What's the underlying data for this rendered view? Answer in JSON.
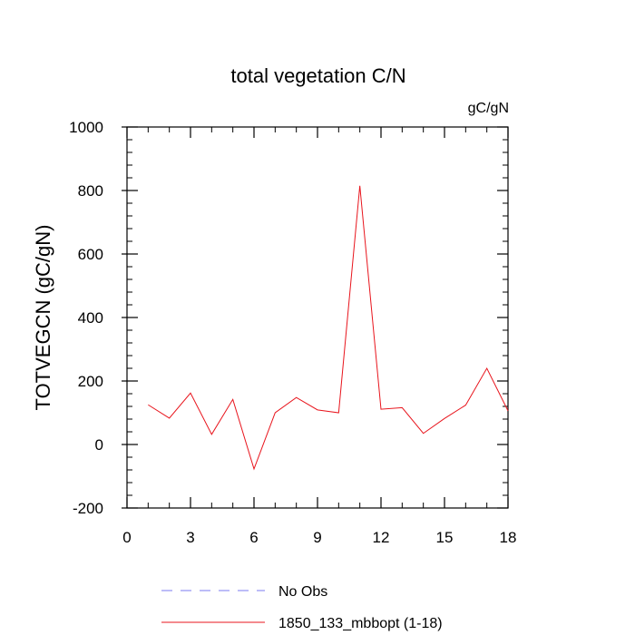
{
  "chart_data": {
    "type": "line",
    "title": "total vegetation C/N",
    "units_label": "gC/gN",
    "ylabel": "TOTVEGCN  (gC/gN)",
    "xlabel": "",
    "xlim": [
      0,
      18
    ],
    "ylim": [
      -200,
      1000
    ],
    "x_ticks": [
      0,
      3,
      6,
      9,
      12,
      15,
      18
    ],
    "y_ticks": [
      -200,
      0,
      200,
      400,
      600,
      800,
      1000
    ],
    "grid": false,
    "legend_position": "bottom",
    "series": [
      {
        "name": "1850_133_mbbopt (1-18)",
        "color": "#e8141c",
        "style": "solid",
        "x": [
          1,
          2,
          3,
          4,
          5,
          6,
          7,
          8,
          9,
          10,
          11,
          12,
          13,
          14,
          15,
          16,
          17,
          18
        ],
        "values": [
          125,
          83,
          162,
          32,
          142,
          -77,
          100,
          148,
          109,
          100,
          815,
          111,
          116,
          35,
          82,
          124,
          240,
          106
        ]
      }
    ],
    "legend": [
      {
        "label": "No Obs",
        "color": "#7b7bf0",
        "style": "dashed"
      },
      {
        "label": "1850_133_mbbopt (1-18)",
        "color": "#e8141c",
        "style": "solid"
      }
    ]
  }
}
